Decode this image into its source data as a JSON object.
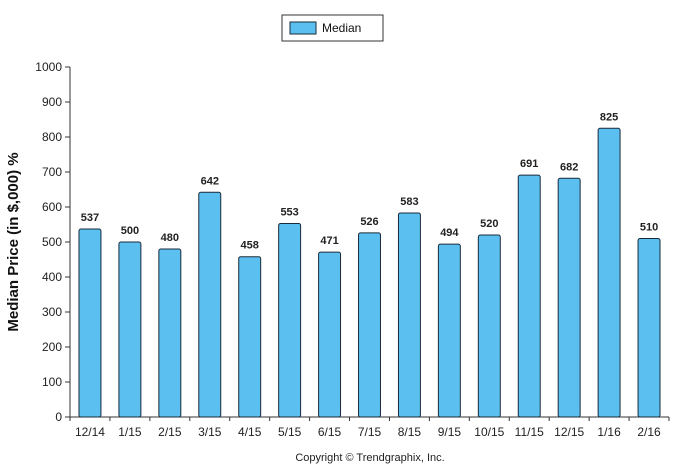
{
  "chart_data": {
    "type": "bar",
    "categories": [
      "12/14",
      "1/15",
      "2/15",
      "3/15",
      "4/15",
      "5/15",
      "6/15",
      "7/15",
      "8/15",
      "9/15",
      "10/15",
      "11/15",
      "12/15",
      "1/16",
      "2/16"
    ],
    "series": [
      {
        "name": "Median",
        "values": [
          537,
          500,
          480,
          642,
          458,
          553,
          471,
          526,
          583,
          494,
          520,
          691,
          682,
          825,
          510
        ]
      }
    ],
    "title": "",
    "xlabel": "",
    "ylabel": "Median Price (in $,000) %",
    "ylim": [
      0,
      1000
    ],
    "yticks": [
      0,
      100,
      200,
      300,
      400,
      500,
      600,
      700,
      800,
      900,
      1000
    ],
    "grid": false,
    "legend": "top-center",
    "bar_color": "#5bc0f0",
    "bar_edge_color": "#1a2a3a",
    "footer": "Copyright © Trendgraphix, Inc."
  }
}
